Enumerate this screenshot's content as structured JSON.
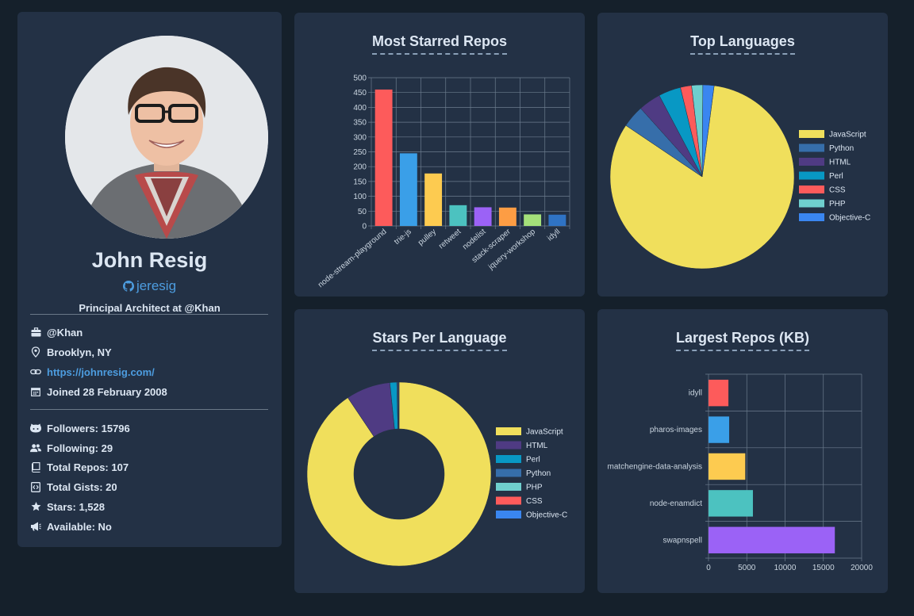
{
  "profile": {
    "name": "John Resig",
    "login": "jeresig",
    "bio": "Principal Architect at @Khan",
    "company": "@Khan",
    "location": "Brooklyn, NY",
    "blog": "https://johnresig.com/",
    "joined": "Joined 28 February 2008",
    "followers": "Followers: 15796",
    "following": "Following: 29",
    "repos": "Total Repos: 107",
    "gists": "Total Gists: 20",
    "stars": "Stars: 1,528",
    "available": "Available: No"
  },
  "icons": {
    "company": "briefcase-icon",
    "location": "map-pin-icon",
    "blog": "link-icon",
    "joined": "calendar-icon",
    "followers": "github-cat-icon",
    "following": "users-icon",
    "repos": "repo-book-icon",
    "gists": "code-file-icon",
    "stars": "star-icon",
    "available": "megaphone-icon"
  },
  "chart_data": [
    {
      "id": "starred",
      "type": "bar",
      "title": "Most Starred Repos",
      "categories": [
        "node-stream-playground",
        "trie-js",
        "pulley",
        "retweet",
        "nodelist",
        "stack-scraper",
        "jquery-workshop",
        "idyll"
      ],
      "values": [
        460,
        245,
        177,
        70,
        63,
        62,
        39,
        38
      ],
      "colors": [
        "#fd5b5b",
        "#3a9fe8",
        "#fdcb50",
        "#4cc2c0",
        "#9b62f6",
        "#fd9d44",
        "#a4e07a",
        "#2f73c4"
      ],
      "ylim": [
        0,
        500
      ],
      "yticks": [
        0,
        50,
        100,
        150,
        200,
        250,
        300,
        350,
        400,
        450,
        500
      ],
      "grid": true
    },
    {
      "id": "toplang",
      "type": "pie",
      "title": "Top Languages",
      "labels": [
        "JavaScript",
        "Python",
        "HTML",
        "Perl",
        "CSS",
        "PHP",
        "Objective-C"
      ],
      "values": [
        84,
        4,
        4,
        4,
        2,
        2,
        2
      ],
      "colors": [
        "#f0df5c",
        "#366eaa",
        "#4f3b83",
        "#0898c4",
        "#fd5b5b",
        "#6fcfce",
        "#3a86f0"
      ],
      "legend": "right"
    },
    {
      "id": "langstars",
      "type": "pie",
      "title": "Stars Per Language",
      "labels": [
        "JavaScript",
        "HTML",
        "Perl",
        "Python",
        "PHP",
        "CSS",
        "Objective-C"
      ],
      "values": [
        90.6,
        7.8,
        1.2,
        0.15,
        0.1,
        0.08,
        0.07
      ],
      "colors": [
        "#f0df5c",
        "#4f3b83",
        "#0898c4",
        "#366eaa",
        "#6fcfce",
        "#fd5b5b",
        "#3a86f0"
      ],
      "legend": "right"
    },
    {
      "id": "largest",
      "type": "bar",
      "orientation": "horizontal",
      "title": "Largest Repos (KB)",
      "categories": [
        "idyll",
        "pharos-images",
        "matchengine-data-analysis",
        "node-enamdict",
        "swapnspell"
      ],
      "values": [
        2600,
        2700,
        4800,
        5800,
        16500
      ],
      "colors": [
        "#fd5b5b",
        "#3a9fe8",
        "#fdcb50",
        "#4cc2c0",
        "#9b62f6"
      ],
      "xlim": [
        0,
        20000
      ],
      "xticks": [
        0,
        5000,
        10000,
        15000,
        20000
      ],
      "grid": true
    }
  ]
}
